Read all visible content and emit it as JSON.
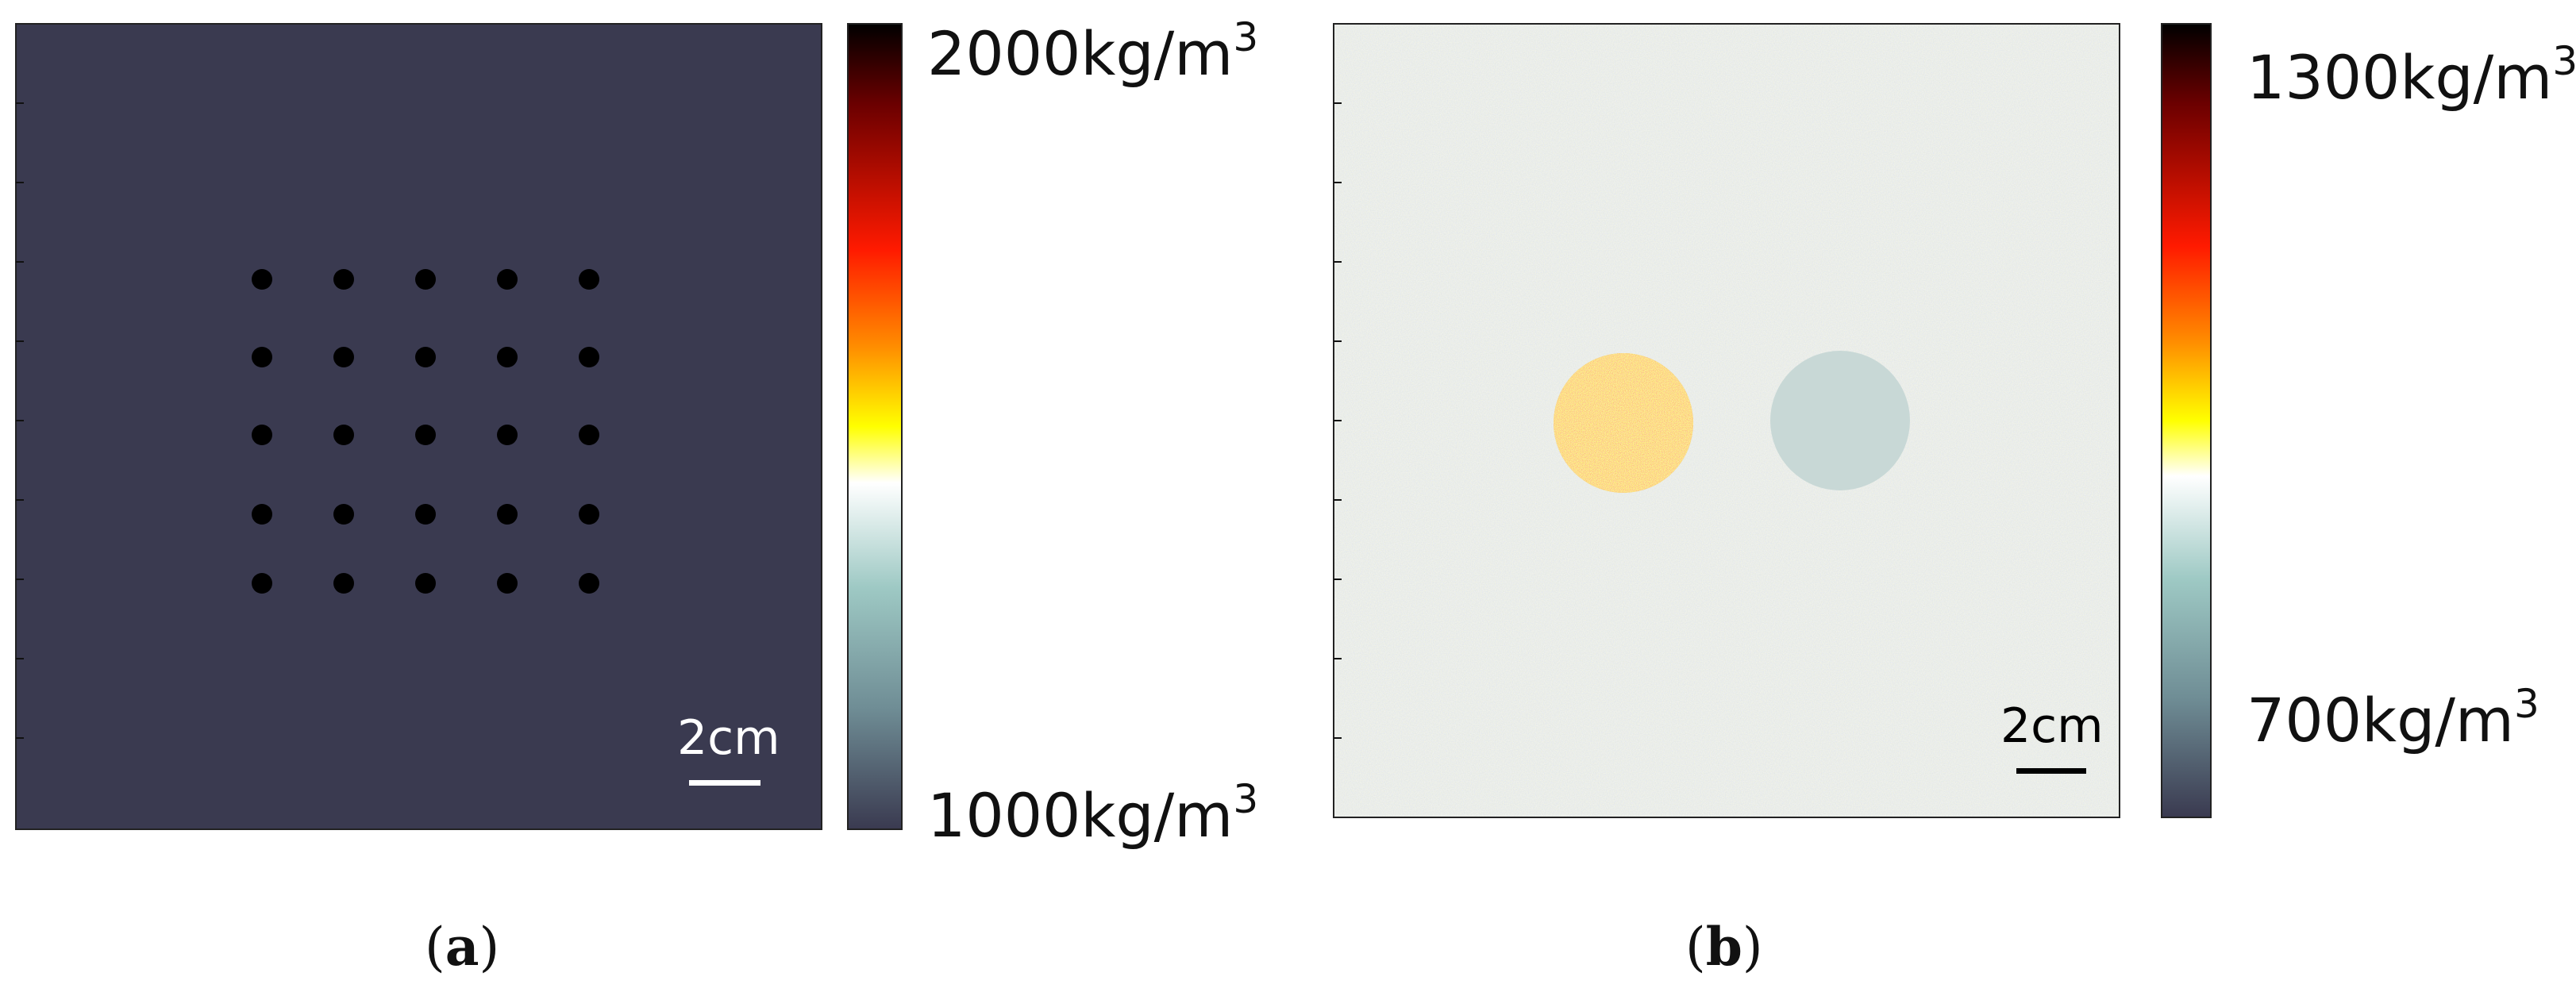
{
  "panels": [
    {
      "id": "a",
      "caption_letter": "a",
      "colorbar": {
        "max_label": "2000kg/m",
        "min_label": "1000kg/m",
        "exponent": "3"
      },
      "scale_bar_label": "2cm",
      "background_color": "#3a3a50",
      "dot_color": "#000000",
      "dot_grid": {
        "rows": 5,
        "cols": 5
      }
    },
    {
      "id": "b",
      "caption_letter": "b",
      "colorbar": {
        "max_label": "1300kg/m",
        "min_label": "700kg/m",
        "exponent": "3"
      },
      "scale_bar_label": "2cm",
      "background_color": "#dfe8e6",
      "inclusions": [
        {
          "name": "noisy-inclusion",
          "style": "speckled red-yellow"
        },
        {
          "name": "uniform-inclusion",
          "color": "#c8d8d6"
        }
      ]
    }
  ],
  "colormap_stops": [
    "#000000",
    "#6b0000",
    "#ff1a00",
    "#ff8c00",
    "#ffff00",
    "#ffffff",
    "#9ec9c4",
    "#6f8d95",
    "#3a3a50"
  ]
}
